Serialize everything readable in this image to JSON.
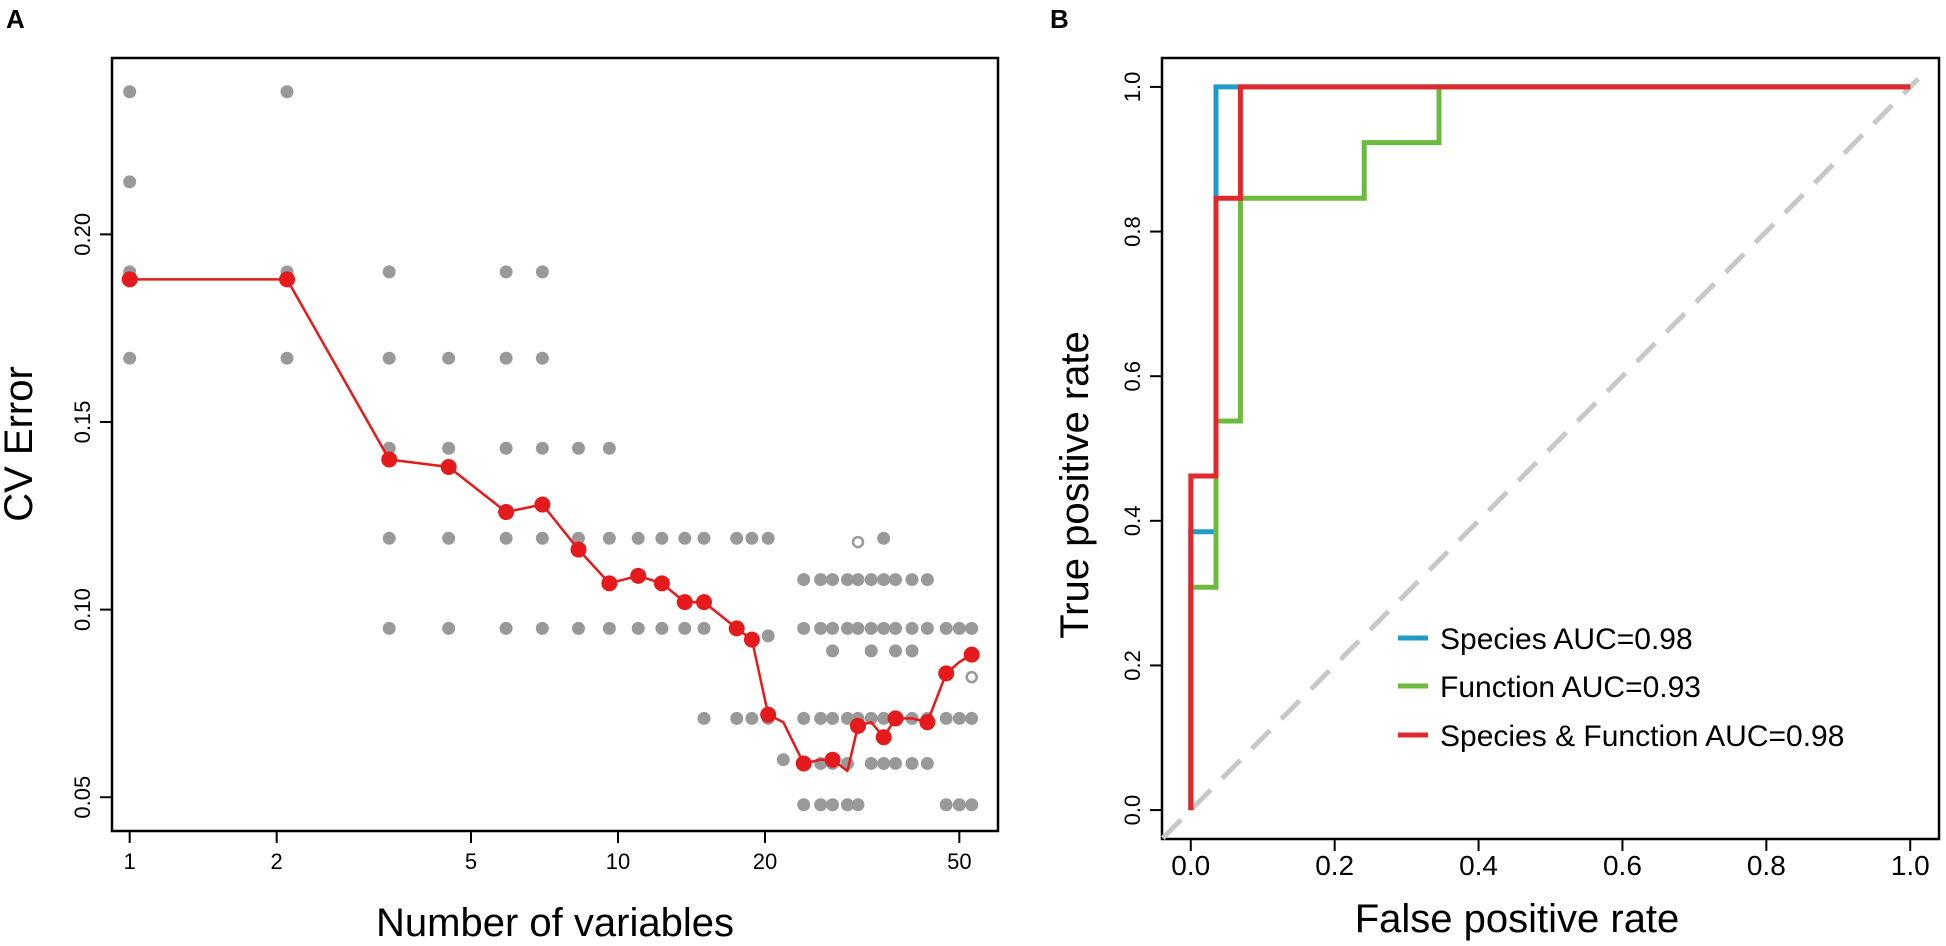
{
  "colors": {
    "grey_points": "#999999",
    "mean_line": "#e41a1c",
    "species": "#1f9ac9",
    "function": "#6cba3f",
    "combined": "#e0282e",
    "diagonal": "#c8c8c8"
  },
  "chart_data": [
    {
      "panel": "A",
      "type": "scatter",
      "title": "",
      "xlabel": "Number of variables",
      "ylabel": "CV Error",
      "x_scale": "log",
      "xlim": [
        0.92,
        60
      ],
      "ylim": [
        0.041,
        0.247
      ],
      "x_ticks": [
        1,
        2,
        5,
        10,
        20,
        50
      ],
      "x_tick_labels": [
        "1",
        "2",
        "5",
        "10",
        "20",
        "50"
      ],
      "y_ticks": [
        0.05,
        0.1,
        0.15,
        0.2
      ],
      "y_tick_labels": [
        "0.05",
        "0.10",
        "0.15",
        "0.20"
      ],
      "grid": false,
      "replicate_points": [
        [
          1,
          0.238
        ],
        [
          1,
          0.214
        ],
        [
          1,
          0.19
        ],
        [
          1,
          0.167
        ],
        [
          2.1,
          0.238
        ],
        [
          2.1,
          0.19
        ],
        [
          2.1,
          0.167
        ],
        [
          3.4,
          0.19
        ],
        [
          3.4,
          0.167
        ],
        [
          3.4,
          0.143
        ],
        [
          3.4,
          0.119
        ],
        [
          3.4,
          0.095
        ],
        [
          4.5,
          0.167
        ],
        [
          4.5,
          0.143
        ],
        [
          4.5,
          0.119
        ],
        [
          4.5,
          0.095
        ],
        [
          5.9,
          0.19
        ],
        [
          5.9,
          0.167
        ],
        [
          5.9,
          0.143
        ],
        [
          5.9,
          0.119
        ],
        [
          5.9,
          0.095
        ],
        [
          7.0,
          0.19
        ],
        [
          7.0,
          0.167
        ],
        [
          7.0,
          0.143
        ],
        [
          7.0,
          0.119
        ],
        [
          7.0,
          0.095
        ],
        [
          8.3,
          0.143
        ],
        [
          8.3,
          0.119
        ],
        [
          8.3,
          0.095
        ],
        [
          9.6,
          0.143
        ],
        [
          9.6,
          0.119
        ],
        [
          9.6,
          0.095
        ],
        [
          11,
          0.119
        ],
        [
          11,
          0.095
        ],
        [
          12.3,
          0.119
        ],
        [
          12.3,
          0.095
        ],
        [
          13.7,
          0.119
        ],
        [
          13.7,
          0.095
        ],
        [
          15,
          0.119
        ],
        [
          15,
          0.095
        ],
        [
          15,
          0.071
        ],
        [
          17.5,
          0.119
        ],
        [
          17.5,
          0.095
        ],
        [
          17.5,
          0.071
        ],
        [
          18.8,
          0.119
        ],
        [
          18.8,
          0.071
        ],
        [
          20.3,
          0.119
        ],
        [
          20.3,
          0.093
        ],
        [
          20.3,
          0.071
        ],
        [
          21.8,
          0.06
        ],
        [
          24,
          0.108
        ],
        [
          24,
          0.095
        ],
        [
          24,
          0.071
        ],
        [
          24,
          0.059
        ],
        [
          24,
          0.048
        ],
        [
          26,
          0.108
        ],
        [
          26,
          0.095
        ],
        [
          26,
          0.071
        ],
        [
          26,
          0.059
        ],
        [
          26,
          0.048
        ],
        [
          27.5,
          0.108
        ],
        [
          27.5,
          0.095
        ],
        [
          27.5,
          0.089
        ],
        [
          27.5,
          0.071
        ],
        [
          27.5,
          0.059
        ],
        [
          27.5,
          0.048
        ],
        [
          29.5,
          0.108
        ],
        [
          29.5,
          0.095
        ],
        [
          29.5,
          0.071
        ],
        [
          29.5,
          0.059
        ],
        [
          29.5,
          0.048
        ],
        [
          31,
          0.108
        ],
        [
          31,
          0.095
        ],
        [
          31,
          0.071
        ],
        [
          31,
          0.048
        ],
        [
          33,
          0.108
        ],
        [
          33,
          0.095
        ],
        [
          33,
          0.089
        ],
        [
          33,
          0.071
        ],
        [
          33,
          0.059
        ],
        [
          35,
          0.119
        ],
        [
          35,
          0.108
        ],
        [
          35,
          0.095
        ],
        [
          35,
          0.071
        ],
        [
          35,
          0.059
        ],
        [
          37,
          0.108
        ],
        [
          37,
          0.095
        ],
        [
          37,
          0.089
        ],
        [
          37,
          0.071
        ],
        [
          37,
          0.059
        ],
        [
          40,
          0.108
        ],
        [
          40,
          0.095
        ],
        [
          40,
          0.089
        ],
        [
          40,
          0.071
        ],
        [
          40,
          0.059
        ],
        [
          43,
          0.108
        ],
        [
          43,
          0.095
        ],
        [
          43,
          0.071
        ],
        [
          43,
          0.059
        ],
        [
          47,
          0.095
        ],
        [
          47,
          0.071
        ],
        [
          47,
          0.048
        ],
        [
          50,
          0.095
        ],
        [
          50,
          0.071
        ],
        [
          50,
          0.048
        ],
        [
          53,
          0.095
        ],
        [
          53,
          0.071
        ],
        [
          53,
          0.048
        ]
      ],
      "open_points": [
        [
          31,
          0.118
        ],
        [
          53,
          0.082
        ]
      ],
      "mean_x": [
        1,
        2.1,
        3.4,
        4.5,
        5.9,
        7.0,
        8.3,
        9.6,
        11,
        12.3,
        13.7,
        15,
        17.5,
        18.8,
        20.3,
        21.8,
        24,
        26,
        27.5,
        29.5,
        31,
        33,
        35,
        37,
        40,
        43,
        47,
        50,
        53
      ],
      "mean_y": [
        0.188,
        0.188,
        0.14,
        0.138,
        0.126,
        0.128,
        0.116,
        0.107,
        0.109,
        0.107,
        0.102,
        0.102,
        0.095,
        0.092,
        0.072,
        0.07,
        0.059,
        0.06,
        0.06,
        0.057,
        0.069,
        0.07,
        0.066,
        0.071,
        0.071,
        0.07,
        0.083,
        0.086,
        0.088
      ],
      "mean_marker_flags": [
        1,
        1,
        1,
        1,
        1,
        1,
        1,
        1,
        1,
        1,
        1,
        1,
        1,
        1,
        1,
        0,
        1,
        0,
        1,
        0,
        1,
        0,
        1,
        1,
        0,
        1,
        1,
        0,
        1
      ]
    },
    {
      "panel": "B",
      "type": "line",
      "title": "",
      "xlabel": "False positive rate",
      "ylabel": "True positive rate",
      "xlim": [
        -0.04,
        1.04
      ],
      "ylim": [
        -0.04,
        1.04
      ],
      "x_ticks": [
        0.0,
        0.2,
        0.4,
        0.6,
        0.8,
        1.0
      ],
      "x_tick_labels": [
        "0.0",
        "0.2",
        "0.4",
        "0.6",
        "0.8",
        "1.0"
      ],
      "y_ticks": [
        0.0,
        0.2,
        0.4,
        0.6,
        0.8,
        1.0
      ],
      "y_tick_labels": [
        "0.0",
        "0.2",
        "0.4",
        "0.6",
        "0.8",
        "1.0"
      ],
      "grid": false,
      "legend_position": "bottom-right",
      "series": [
        {
          "name": "Species AUC=0.98",
          "x": [
            0,
            0,
            0.035,
            0.035,
            1
          ],
          "y": [
            0,
            0.385,
            0.385,
            1.0,
            1.0
          ]
        },
        {
          "name": "Function AUC=0.93",
          "x": [
            0,
            0,
            0.035,
            0.035,
            0.069,
            0.069,
            0.241,
            0.241,
            0.345,
            0.345,
            1
          ],
          "y": [
            0,
            0.308,
            0.308,
            0.538,
            0.538,
            0.846,
            0.846,
            0.923,
            0.923,
            1.0,
            1.0
          ]
        },
        {
          "name": "Species & Function AUC=0.98",
          "x": [
            0,
            0,
            0.035,
            0.035,
            0.069,
            0.069,
            1
          ],
          "y": [
            0,
            0.462,
            0.462,
            0.846,
            0.846,
            1.0,
            1.0
          ]
        }
      ],
      "reference_line": {
        "x": [
          0,
          1
        ],
        "y": [
          0,
          1
        ],
        "style": "dashed"
      }
    }
  ]
}
